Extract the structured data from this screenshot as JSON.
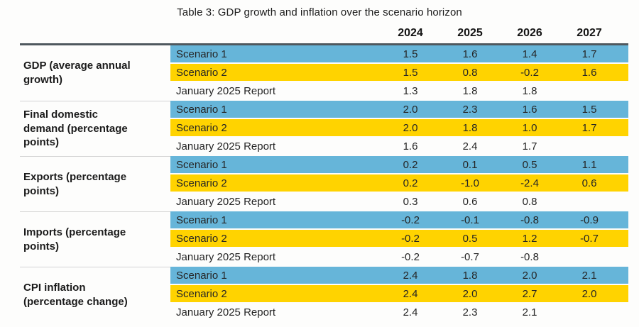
{
  "title": "Table 3: GDP growth and inflation over the scenario horizon",
  "colors": {
    "scenario1_bg": "#66b5d9",
    "scenario2_bg": "#ffd300",
    "header_rule": "#4f585e",
    "group_divider": "#d4d4d4"
  },
  "chart_data": {
    "type": "table",
    "title": "Table 3: GDP growth and inflation over the scenario horizon",
    "columns": [
      "2024",
      "2025",
      "2026",
      "2027"
    ],
    "row_series": [
      "Scenario 1",
      "Scenario 2",
      "January 2025 Report"
    ],
    "row_colors": {
      "Scenario 1": "#66b5d9",
      "Scenario 2": "#ffd300",
      "January 2025 Report": "#ffffff"
    },
    "groups": [
      {
        "label": "GDP (average annual growth)",
        "rows": [
          {
            "name": "Scenario 1",
            "values": [
              "1.5",
              "1.6",
              "1.4",
              "1.7"
            ]
          },
          {
            "name": "Scenario 2",
            "values": [
              "1.5",
              "0.8",
              "-0.2",
              "1.6"
            ]
          },
          {
            "name": "January 2025 Report",
            "values": [
              "1.3",
              "1.8",
              "1.8",
              ""
            ]
          }
        ]
      },
      {
        "label": "Final domestic demand (percentage points)",
        "rows": [
          {
            "name": "Scenario 1",
            "values": [
              "2.0",
              "2.3",
              "1.6",
              "1.5"
            ]
          },
          {
            "name": "Scenario 2",
            "values": [
              "2.0",
              "1.8",
              "1.0",
              "1.7"
            ]
          },
          {
            "name": "January 2025 Report",
            "values": [
              "1.6",
              "2.4",
              "1.7",
              ""
            ]
          }
        ]
      },
      {
        "label": "Exports (percentage points)",
        "rows": [
          {
            "name": "Scenario 1",
            "values": [
              "0.2",
              "0.1",
              "0.5",
              "1.1"
            ]
          },
          {
            "name": "Scenario 2",
            "values": [
              "0.2",
              "-1.0",
              "-2.4",
              "0.6"
            ]
          },
          {
            "name": "January 2025 Report",
            "values": [
              "0.3",
              "0.6",
              "0.8",
              ""
            ]
          }
        ]
      },
      {
        "label": "Imports (percentage points)",
        "rows": [
          {
            "name": "Scenario 1",
            "values": [
              "-0.2",
              "-0.1",
              "-0.8",
              "-0.9"
            ]
          },
          {
            "name": "Scenario 2",
            "values": [
              "-0.2",
              "0.5",
              "1.2",
              "-0.7"
            ]
          },
          {
            "name": "January 2025 Report",
            "values": [
              "-0.2",
              "-0.7",
              "-0.8",
              ""
            ]
          }
        ]
      },
      {
        "label": "CPI inflation (percentage change)",
        "rows": [
          {
            "name": "Scenario 1",
            "values": [
              "2.4",
              "1.8",
              "2.0",
              "2.1"
            ]
          },
          {
            "name": "Scenario 2",
            "values": [
              "2.4",
              "2.0",
              "2.7",
              "2.0"
            ]
          },
          {
            "name": "January 2025 Report",
            "values": [
              "2.4",
              "2.3",
              "2.1",
              ""
            ]
          }
        ]
      }
    ]
  }
}
